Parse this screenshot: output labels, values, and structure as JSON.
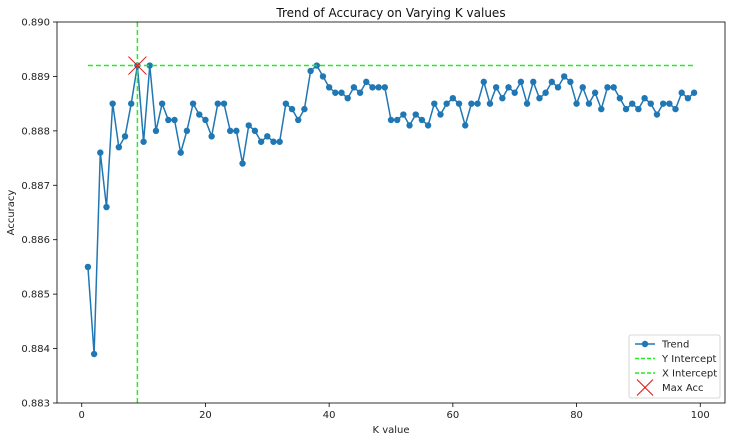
{
  "chart_data": {
    "type": "line",
    "title": "Trend of Accuracy on Varying K values",
    "xlabel": "K value",
    "ylabel": "Accuracy",
    "xlim": [
      -4,
      104
    ],
    "ylim": [
      0.883,
      0.89
    ],
    "xticks": [
      0,
      20,
      40,
      60,
      80,
      100
    ],
    "yticks": [
      0.883,
      0.884,
      0.885,
      0.886,
      0.887,
      0.888,
      0.889,
      0.89
    ],
    "grid": false,
    "legend_position": "lower-right",
    "series": [
      {
        "name": "Trend",
        "color": "#1f77b4",
        "marker": "circle",
        "x": [
          1,
          2,
          3,
          4,
          5,
          6,
          7,
          8,
          9,
          10,
          11,
          12,
          13,
          14,
          15,
          16,
          17,
          18,
          19,
          20,
          21,
          22,
          23,
          24,
          25,
          26,
          27,
          28,
          29,
          30,
          31,
          32,
          33,
          34,
          35,
          36,
          37,
          38,
          39,
          40,
          41,
          42,
          43,
          44,
          45,
          46,
          47,
          48,
          49,
          50,
          51,
          52,
          53,
          54,
          55,
          56,
          57,
          58,
          59,
          60,
          61,
          62,
          63,
          64,
          65,
          66,
          67,
          68,
          69,
          70,
          71,
          72,
          73,
          74,
          75,
          76,
          77,
          78,
          79,
          80,
          81,
          82,
          83,
          84,
          85,
          86,
          87,
          88,
          89,
          90,
          91,
          92,
          93,
          94,
          95,
          96,
          97,
          98,
          99
        ],
        "y": [
          0.8855,
          0.8839,
          0.8876,
          0.8866,
          0.8885,
          0.8877,
          0.8879,
          0.8885,
          0.8892,
          0.8878,
          0.8892,
          0.888,
          0.8885,
          0.8882,
          0.8882,
          0.8876,
          0.888,
          0.8885,
          0.8883,
          0.8882,
          0.8879,
          0.8885,
          0.8885,
          0.888,
          0.888,
          0.8874,
          0.8881,
          0.888,
          0.8878,
          0.8879,
          0.8878,
          0.8878,
          0.8885,
          0.8884,
          0.8882,
          0.8884,
          0.8891,
          0.8892,
          0.889,
          0.8888,
          0.8887,
          0.8887,
          0.8886,
          0.8888,
          0.8887,
          0.8889,
          0.8888,
          0.8888,
          0.8888,
          0.8882,
          0.8882,
          0.8883,
          0.8881,
          0.8883,
          0.8882,
          0.8881,
          0.8885,
          0.8883,
          0.8885,
          0.8886,
          0.8885,
          0.8881,
          0.8885,
          0.8885,
          0.8889,
          0.8885,
          0.8888,
          0.8886,
          0.8888,
          0.8887,
          0.8889,
          0.8885,
          0.8889,
          0.8886,
          0.8887,
          0.8889,
          0.8888,
          0.889,
          0.8889,
          0.8885,
          0.8888,
          0.8885,
          0.8887,
          0.8884,
          0.8888,
          0.8888,
          0.8886,
          0.8884,
          0.8885,
          0.8884,
          0.8886,
          0.8885,
          0.8883,
          0.8885,
          0.8885,
          0.8884,
          0.8887,
          0.8886,
          0.8887
        ]
      },
      {
        "name": "Y Intercept",
        "color": "#22ee22",
        "style": "dashed",
        "orientation": "horizontal",
        "y": 0.8892,
        "x_range": [
          1,
          99
        ]
      },
      {
        "name": "X Intercept",
        "color": "#22ee22",
        "style": "dashed",
        "orientation": "vertical",
        "x": 9
      },
      {
        "name": "Max Acc",
        "color": "#dd1111",
        "marker": "x",
        "x": 9,
        "y": 0.8892
      }
    ]
  }
}
